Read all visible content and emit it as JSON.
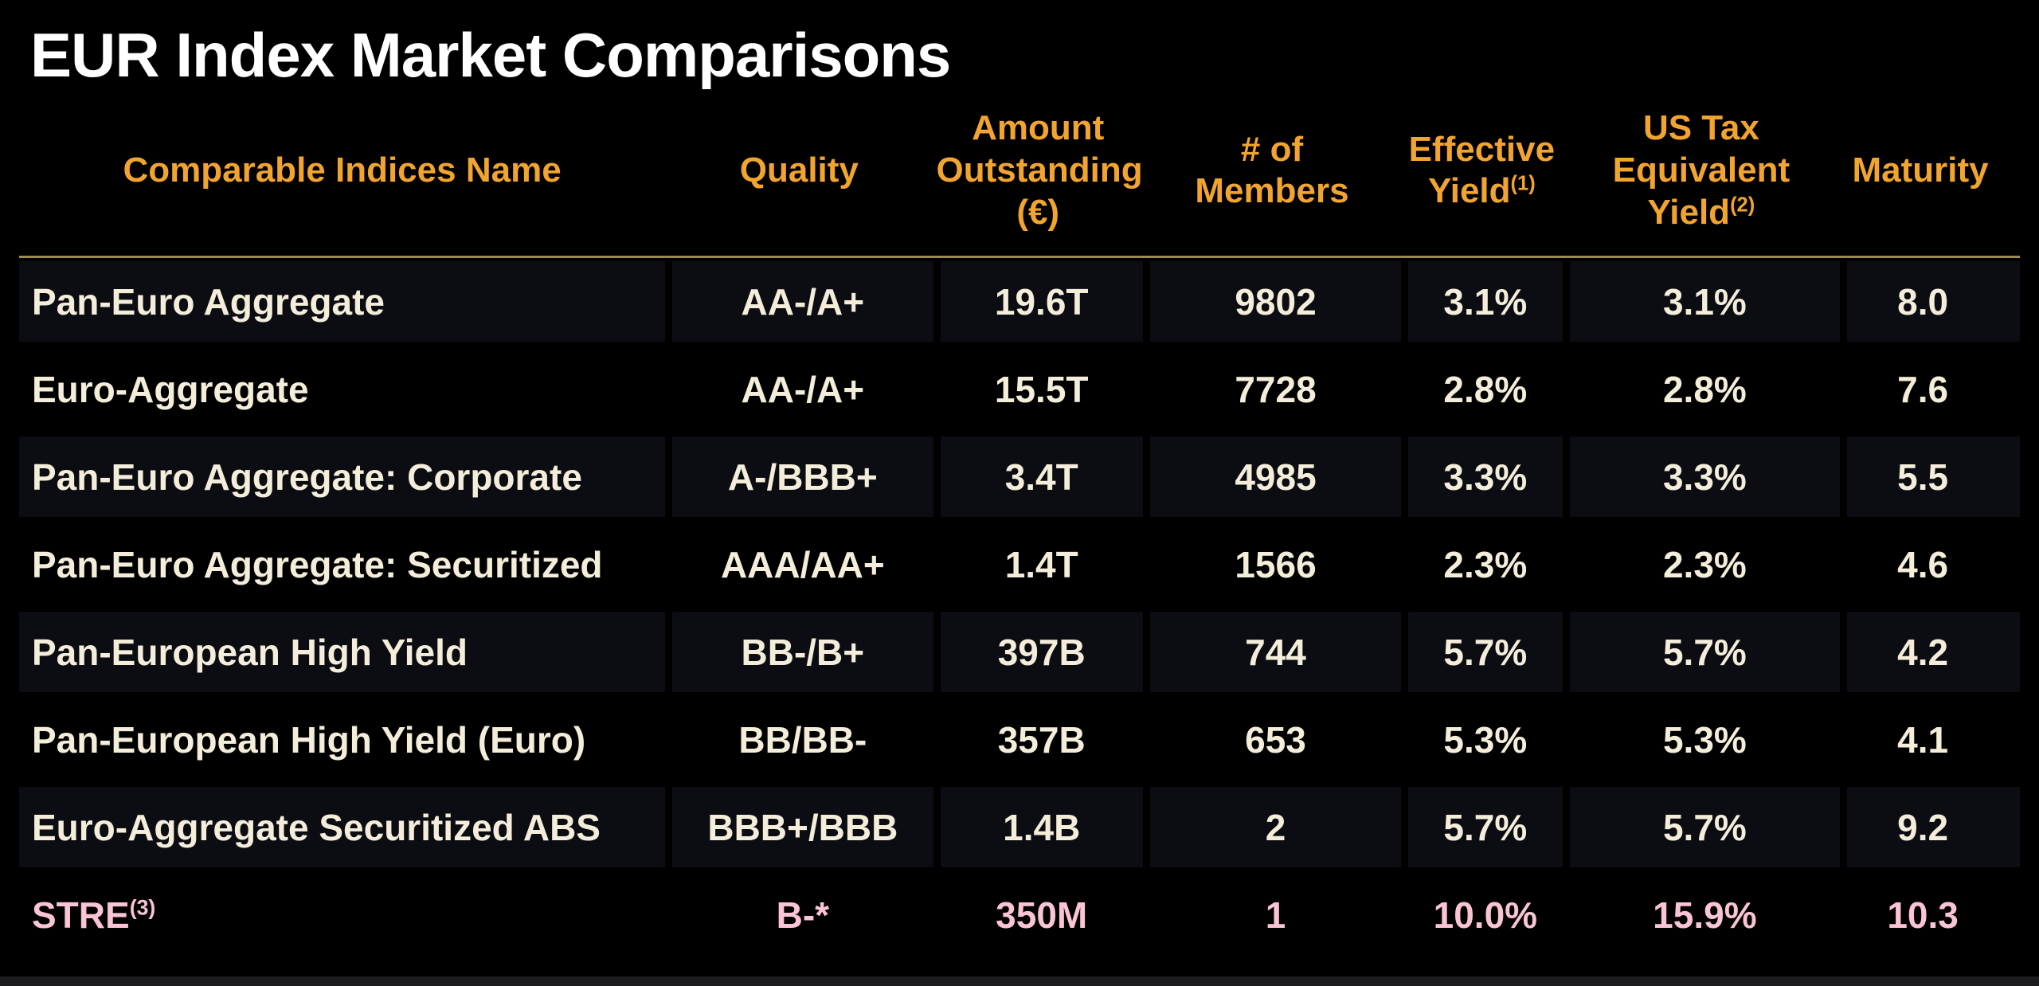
{
  "title": "EUR Index Market Comparisons",
  "colors": {
    "background": "#000000",
    "stripe_row": "#0c0c13",
    "header_text": "#f1a42f",
    "divider_line": "#9c8a52",
    "body_text": "#f3edda",
    "highlight_text": "#f9c4d3",
    "title_text": "#ffffff",
    "bottom_strip": "#1b1b20"
  },
  "chart_data": {
    "type": "table",
    "title": "EUR Index Market Comparisons",
    "columns": [
      {
        "key": "name",
        "label": "Comparable Indices Name",
        "lines": [
          "Comparable Indices Name"
        ],
        "sup": ""
      },
      {
        "key": "quality",
        "label": "Quality",
        "lines": [
          "Quality"
        ],
        "sup": ""
      },
      {
        "key": "amount",
        "label": "Amount Outstanding (€)",
        "lines": [
          "Amount",
          "Outstanding",
          "(€)"
        ],
        "sup": ""
      },
      {
        "key": "members",
        "label": "# of Members",
        "lines": [
          "# of",
          "Members"
        ],
        "sup": ""
      },
      {
        "key": "eff_yield",
        "label": "Effective Yield",
        "lines": [
          "Effective",
          "Yield"
        ],
        "sup": "(1)"
      },
      {
        "key": "us_tax",
        "label": "US Tax Equivalent Yield",
        "lines": [
          "US Tax",
          "Equivalent",
          "Yield"
        ],
        "sup": "(2)"
      },
      {
        "key": "maturity",
        "label": "Maturity",
        "lines": [
          "Maturity"
        ],
        "sup": ""
      }
    ],
    "rows": [
      {
        "name": "Pan-Euro Aggregate",
        "quality": "AA-/A+",
        "amount": "19.6T",
        "members": "9802",
        "eff_yield": "3.1%",
        "us_tax": "3.1%",
        "maturity": "8.0",
        "highlight": false
      },
      {
        "name": "Euro-Aggregate",
        "quality": "AA-/A+",
        "amount": "15.5T",
        "members": "7728",
        "eff_yield": "2.8%",
        "us_tax": "2.8%",
        "maturity": "7.6",
        "highlight": false
      },
      {
        "name": "Pan-Euro Aggregate: Corporate",
        "quality": "A-/BBB+",
        "amount": "3.4T",
        "members": "4985",
        "eff_yield": "3.3%",
        "us_tax": "3.3%",
        "maturity": "5.5",
        "highlight": false
      },
      {
        "name": "Pan-Euro Aggregate: Securitized",
        "quality": "AAA/AA+",
        "amount": "1.4T",
        "members": "1566",
        "eff_yield": "2.3%",
        "us_tax": "2.3%",
        "maturity": "4.6",
        "highlight": false
      },
      {
        "name": "Pan-European High Yield",
        "quality": "BB-/B+",
        "amount": "397B",
        "members": "744",
        "eff_yield": "5.7%",
        "us_tax": "5.7%",
        "maturity": "4.2",
        "highlight": false
      },
      {
        "name": "Pan-European High Yield (Euro)",
        "quality": "BB/BB-",
        "amount": "357B",
        "members": "653",
        "eff_yield": "5.3%",
        "us_tax": "5.3%",
        "maturity": "4.1",
        "highlight": false
      },
      {
        "name": "Euro-Aggregate Securitized ABS",
        "quality": "BBB+/BBB",
        "amount": "1.4B",
        "members": "2",
        "eff_yield": "5.7%",
        "us_tax": "5.7%",
        "maturity": "9.2",
        "highlight": false
      },
      {
        "name": "STRE",
        "name_sup": "(3)",
        "quality": "B-*",
        "amount": "350M",
        "members": "1",
        "eff_yield": "10.0%",
        "us_tax": "15.9%",
        "maturity": "10.3",
        "highlight": true
      }
    ],
    "footnote_markers": [
      "(1)",
      "(2)",
      "(3)"
    ]
  }
}
